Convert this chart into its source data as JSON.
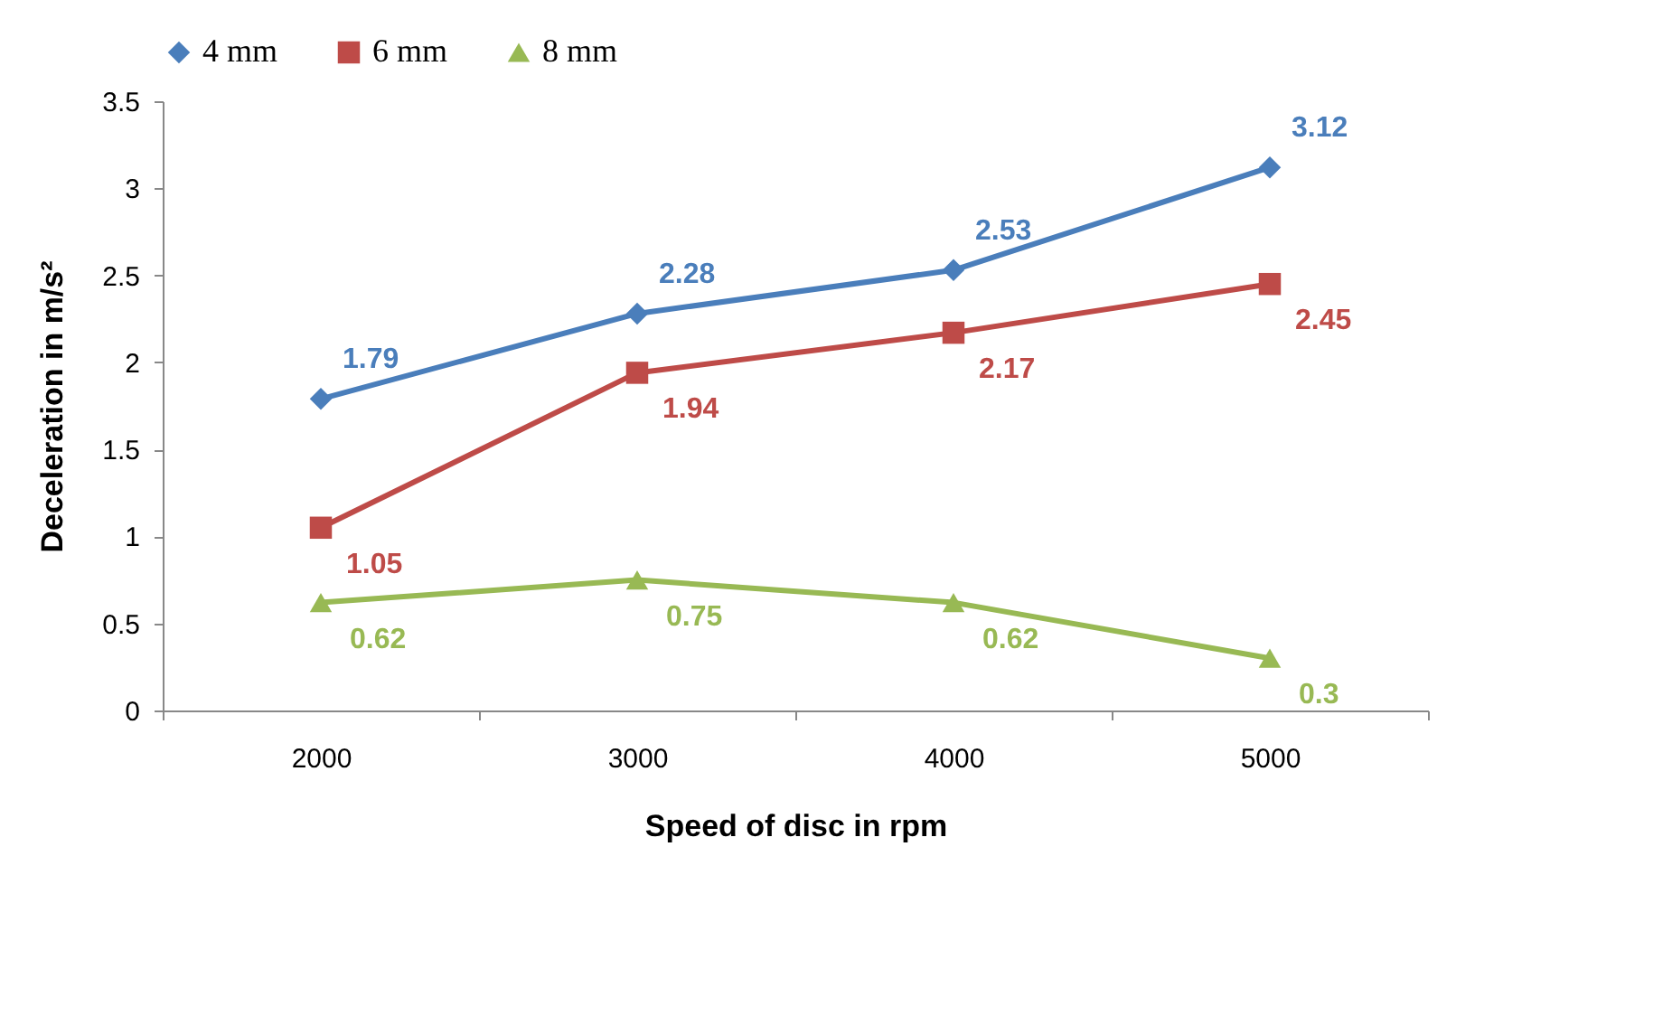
{
  "chart_data": {
    "type": "line",
    "xlabel": "Speed of disc in rpm",
    "ylabel": "Deceleration in m/s²",
    "categories": [
      "2000",
      "3000",
      "4000",
      "5000"
    ],
    "series": [
      {
        "name": "4 mm",
        "color": "#4a7ebb",
        "marker": "diamond",
        "values": [
          1.79,
          2.28,
          2.53,
          3.12
        ]
      },
      {
        "name": "6 mm",
        "color": "#be4b48",
        "marker": "square",
        "values": [
          1.05,
          1.94,
          2.17,
          2.45
        ]
      },
      {
        "name": "8 mm",
        "color": "#98b954",
        "marker": "triangle",
        "values": [
          0.62,
          0.75,
          0.62,
          0.3
        ]
      }
    ],
    "ylim": [
      0,
      3.5
    ],
    "yticks": [
      0,
      0.5,
      1,
      1.5,
      2,
      2.5,
      3,
      3.5
    ],
    "grid": false,
    "legend": "top",
    "data_labels": true
  }
}
